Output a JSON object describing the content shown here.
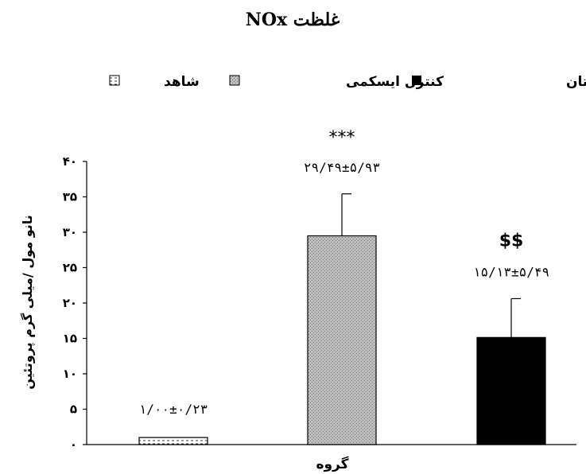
{
  "chart_data": {
    "type": "bar",
    "title": "غلظت NOx",
    "xlabel": "گروه",
    "ylabel": "نانو مول /میلی گرم پروتئین",
    "ylim": [
      0,
      40
    ],
    "yticks": [
      0,
      5,
      10,
      15,
      20,
      25,
      30,
      35,
      40
    ],
    "ytick_labels": [
      "۰",
      "۵",
      "۱۰",
      "۱۵",
      "۲۰",
      "۲۵",
      "۳۰",
      "۳۵",
      "۴۰"
    ],
    "grid": false,
    "legend_position": "top",
    "categories": [
      "شاهد",
      "کنترل ایسکمی",
      "ایسکمی و لوزارتان"
    ],
    "values": [
      1.0,
      29.49,
      15.13
    ],
    "errors": [
      0.23,
      5.93,
      5.49
    ],
    "data_labels": [
      "۱/۰۰±۰/۲۳",
      "۲۹/۴۹±۵/۹۳",
      "۱۵/۱۳±۵/۴۹"
    ],
    "significance": [
      "",
      "***",
      "$$"
    ],
    "legend": [
      {
        "label": "شاهد",
        "pattern": "dashed-white"
      },
      {
        "label": "کنترل ایسکمی",
        "pattern": "gray-texture"
      },
      {
        "label": "ایسکمی و لوزارتان",
        "pattern": "solid-black"
      }
    ],
    "colors": {
      "control": "#ffffff",
      "ischemia": "#b0b0b0",
      "losartan": "#000000"
    }
  }
}
